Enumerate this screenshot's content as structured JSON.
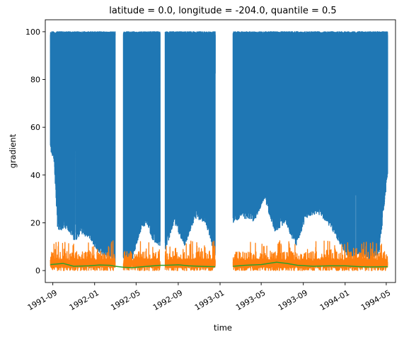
{
  "chart_data": {
    "type": "line",
    "title": "latitude = 0.0, longitude = -204.0, quantile = 0.5",
    "xlabel": "time",
    "ylabel": "gradient",
    "xlim": [
      "1991-08-10",
      "1994-05-28"
    ],
    "ylim": [
      -5,
      105
    ],
    "yticks": [
      0,
      20,
      40,
      60,
      80,
      100
    ],
    "xticks": [
      "1991-09",
      "1992-01",
      "1992-05",
      "1992-09",
      "1993-01",
      "1993-05",
      "1993-09",
      "1994-01",
      "1994-05"
    ],
    "grid": false,
    "data_gaps": [
      {
        "start": "1992-03-01",
        "end": "1992-03-25"
      },
      {
        "start": "1992-07-10",
        "end": "1992-07-25"
      },
      {
        "start": "1992-12-18",
        "end": "1993-02-08"
      }
    ],
    "series": [
      {
        "color": "#1f77b4",
        "style": "dense-oscillation",
        "start": "1991-08-25",
        "end": "1994-05-05",
        "upper": 100,
        "lower_envelope": [
          [
            "1991-08-25",
            50
          ],
          [
            "1991-09-05",
            45
          ],
          [
            "1991-09-15",
            17
          ],
          [
            "1991-10-15",
            17
          ],
          [
            "1991-11-05",
            12
          ],
          [
            "1991-11-20",
            15
          ],
          [
            "1991-12-15",
            14
          ],
          [
            "1992-01-10",
            8
          ],
          [
            "1992-02-10",
            5
          ],
          [
            "1992-02-28",
            3
          ],
          [
            "1992-03-25",
            5
          ],
          [
            "1992-04-20",
            4
          ],
          [
            "1992-05-10",
            15
          ],
          [
            "1992-06-01",
            20
          ],
          [
            "1992-06-20",
            12
          ],
          [
            "1992-07-10",
            10
          ],
          [
            "1992-07-25",
            8
          ],
          [
            "1992-08-20",
            20
          ],
          [
            "1992-09-20",
            10
          ],
          [
            "1992-10-20",
            22
          ],
          [
            "1992-11-20",
            20
          ],
          [
            "1992-12-18",
            5
          ],
          [
            "1993-02-08",
            20
          ],
          [
            "1993-03-10",
            22
          ],
          [
            "1993-04-10",
            20
          ],
          [
            "1993-05-10",
            30
          ],
          [
            "1993-06-10",
            16
          ],
          [
            "1993-07-10",
            20
          ],
          [
            "1993-08-10",
            10
          ],
          [
            "1993-09-10",
            22
          ],
          [
            "1993-10-10",
            24
          ],
          [
            "1993-11-10",
            20
          ],
          [
            "1993-12-10",
            13
          ],
          [
            "1994-01-10",
            5
          ],
          [
            "1994-02-10",
            7
          ],
          [
            "1994-03-10",
            4
          ],
          [
            "1994-04-10",
            7
          ],
          [
            "1994-05-05",
            40
          ]
        ]
      },
      {
        "color": "#ff7f0e",
        "style": "noisy-band",
        "start": "1991-08-25",
        "end": "1994-05-05",
        "range": [
          0,
          15
        ],
        "typical": [
          1,
          5
        ]
      },
      {
        "color": "#2ca02c",
        "style": "smooth",
        "points": [
          [
            "1991-08-25",
            2.5
          ],
          [
            "1991-10-01",
            3.0
          ],
          [
            "1991-11-01",
            1.8
          ],
          [
            "1991-12-15",
            2.0
          ],
          [
            "1992-01-15",
            2.3
          ],
          [
            "1992-02-15",
            2.2
          ],
          [
            "1992-03-01",
            1.8
          ],
          [
            "1992-03-25",
            1.4
          ],
          [
            "1992-04-20",
            1.2
          ],
          [
            "1992-05-20",
            1.6
          ],
          [
            "1992-07-10",
            2.2
          ],
          [
            "1992-07-25",
            2.2
          ],
          [
            "1992-09-01",
            2.4
          ],
          [
            "1992-10-01",
            2.0
          ],
          [
            "1992-11-01",
            1.8
          ],
          [
            "1992-12-18",
            1.6
          ],
          [
            "1993-02-08",
            1.8
          ],
          [
            "1993-03-15",
            2.2
          ],
          [
            "1993-05-01",
            2.5
          ],
          [
            "1993-06-15",
            3.5
          ],
          [
            "1993-07-15",
            3.0
          ],
          [
            "1993-08-15",
            2.2
          ],
          [
            "1993-10-01",
            1.8
          ],
          [
            "1993-11-15",
            2.0
          ],
          [
            "1994-01-01",
            2.0
          ],
          [
            "1994-02-15",
            1.6
          ],
          [
            "1994-03-15",
            1.5
          ],
          [
            "1994-05-05",
            1.6
          ]
        ]
      }
    ]
  }
}
